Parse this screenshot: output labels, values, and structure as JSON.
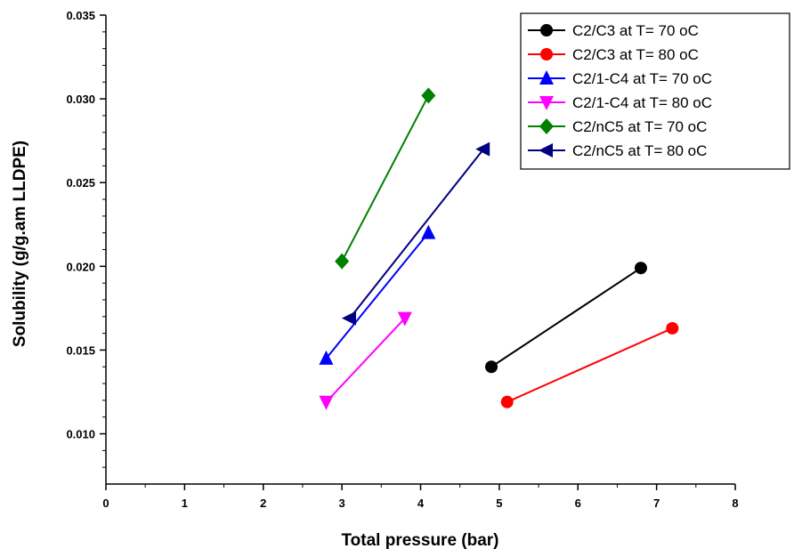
{
  "chart_data": {
    "type": "line",
    "title": "",
    "xlabel": "Total pressure (bar)",
    "ylabel": "Solubility (g/g.am LLDPE)",
    "xlim": [
      0,
      8
    ],
    "ylim": [
      0.007,
      0.035
    ],
    "xticks": [
      "0",
      "1",
      "2",
      "3",
      "4",
      "5",
      "6",
      "7",
      "8"
    ],
    "yticks": [
      "0.010",
      "0.015",
      "0.020",
      "0.025",
      "0.030",
      "0.035"
    ],
    "grid": false,
    "legend_position": "top-right",
    "series": [
      {
        "name": "C2/C3 at T= 70 oC",
        "color": "#000000",
        "marker": "circle",
        "x": [
          4.9,
          6.8
        ],
        "y": [
          0.014,
          0.0199
        ]
      },
      {
        "name": "C2/C3 at T= 80 oC",
        "color": "#ff0000",
        "marker": "circle",
        "x": [
          5.1,
          7.2
        ],
        "y": [
          0.0119,
          0.0163
        ]
      },
      {
        "name": "C2/1-C4 at T= 70 oC",
        "color": "#0000ff",
        "marker": "triangle-up",
        "x": [
          2.8,
          4.1
        ],
        "y": [
          0.0145,
          0.022
        ]
      },
      {
        "name": "C2/1-C4 at T= 80 oC",
        "color": "#ff00ff",
        "marker": "triangle-down",
        "x": [
          2.8,
          3.8
        ],
        "y": [
          0.0119,
          0.0169
        ]
      },
      {
        "name": "C2/nC5 at T= 70 oC",
        "color": "#008000",
        "marker": "diamond",
        "x": [
          3.0,
          4.1
        ],
        "y": [
          0.0203,
          0.0302
        ]
      },
      {
        "name": "C2/nC5 at T= 80 oC",
        "color": "#000080",
        "marker": "triangle-left",
        "x": [
          3.1,
          4.8
        ],
        "y": [
          0.0169,
          0.027
        ]
      }
    ]
  }
}
